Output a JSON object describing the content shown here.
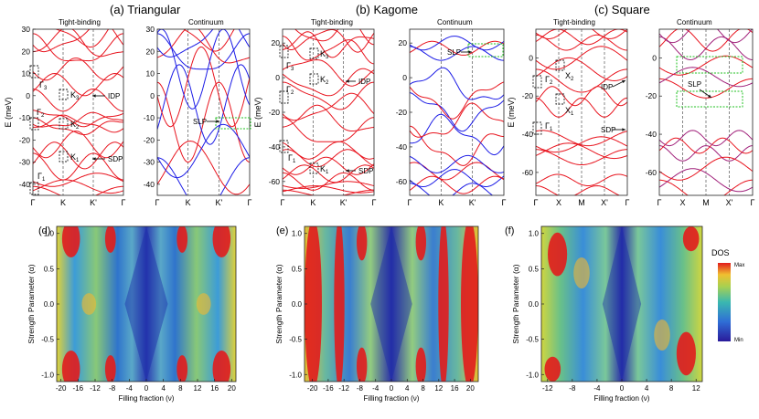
{
  "panel_titles": {
    "a": "(a) Triangular",
    "b": "(b) Kagome",
    "c": "(c) Square",
    "d": "(d)",
    "e": "(e)",
    "f": "(f)"
  },
  "subtitles": {
    "tb": "Tight-binding",
    "cont": "Continuum"
  },
  "labels": {
    "energy_axis": "E (meV)",
    "strength_axis": "Strength Parameter (α)",
    "filling_axis": "Filling fraction (ν)",
    "dos_title": "DOS",
    "dos_max": "Max",
    "dos_min": "Min",
    "idp": "IDP",
    "sdp": "SDP",
    "slp": "SLP"
  },
  "colors": {
    "red": "#e8141e",
    "blue": "#1c1ce6",
    "purple": "#a0207a",
    "green": "#22c022"
  },
  "chart_data": [
    {
      "type": "line",
      "panel": "a-tight-binding",
      "ylabel": "E (meV)",
      "ylim": [
        -45,
        30
      ],
      "yticks": [
        -40,
        -30,
        -20,
        -10,
        0,
        10,
        20,
        30
      ],
      "xticks": [
        "Γ",
        "K",
        "K'",
        "Γ"
      ],
      "annotations": [
        "Γ3",
        "Γ2",
        "Γ1",
        "K3",
        "K2",
        "K1",
        "IDP",
        "SDP"
      ]
    },
    {
      "type": "line",
      "panel": "a-continuum",
      "ylim": [
        -45,
        30
      ],
      "yticks": [
        -40,
        -30,
        -20,
        -10,
        0,
        10,
        20,
        30
      ],
      "xticks": [
        "Γ",
        "K",
        "K'",
        "Γ"
      ],
      "annotations": [
        "SLP"
      ]
    },
    {
      "type": "line",
      "panel": "b-tight-binding",
      "ylabel": "E (meV)",
      "ylim": [
        -68,
        28
      ],
      "yticks": [
        -60,
        -40,
        -20,
        0,
        20
      ],
      "xticks": [
        "Γ",
        "K",
        "K'",
        "Γ"
      ],
      "annotations": [
        "Γ3",
        "Γ2",
        "Γ1",
        "K3",
        "K2",
        "K1",
        "IDP",
        "SDP"
      ]
    },
    {
      "type": "line",
      "panel": "b-continuum",
      "ylim": [
        -68,
        28
      ],
      "yticks": [
        -60,
        -40,
        -20,
        0,
        20
      ],
      "xticks": [
        "Γ",
        "K",
        "K'",
        "Γ"
      ],
      "annotations": [
        "SLP"
      ]
    },
    {
      "type": "line",
      "panel": "c-tight-binding",
      "ylabel": "E (meV)",
      "ylim": [
        -72,
        15
      ],
      "yticks": [
        -60,
        -40,
        -20,
        0
      ],
      "xticks": [
        "Γ",
        "X",
        "M",
        "X'",
        "Γ"
      ],
      "annotations": [
        "Γ2",
        "Γ1",
        "X2",
        "X1",
        "IDP",
        "SDP"
      ]
    },
    {
      "type": "line",
      "panel": "c-continuum",
      "ylim": [
        -72,
        15
      ],
      "yticks": [
        -60,
        -40,
        -20,
        0
      ],
      "xticks": [
        "Γ",
        "X",
        "M",
        "X'",
        "Γ"
      ],
      "annotations": [
        "SLP"
      ]
    },
    {
      "type": "heatmap",
      "panel": "d",
      "xlabel": "Filling fraction (ν)",
      "ylabel": "Strength Parameter (α)",
      "xlim": [
        -21,
        21
      ],
      "ylim": [
        -1.1,
        1.1
      ],
      "xticks": [
        -20,
        -16,
        -12,
        -8,
        -4,
        0,
        4,
        8,
        12,
        16,
        20
      ],
      "yticks": [
        -1.0,
        -0.5,
        0.0,
        0.5,
        1.0
      ]
    },
    {
      "type": "heatmap",
      "panel": "e",
      "xlabel": "Filling fraction (ν)",
      "ylabel": "Strength Parameter (α)",
      "xlim": [
        -22,
        22
      ],
      "ylim": [
        -1.1,
        1.1
      ],
      "xticks": [
        -20,
        -16,
        -12,
        -8,
        -4,
        0,
        4,
        8,
        12,
        16,
        20
      ],
      "yticks": [
        -1.0,
        -0.5,
        0.0,
        0.5,
        1.0
      ]
    },
    {
      "type": "heatmap",
      "panel": "f",
      "xlabel": "Filling fraction (ν)",
      "ylabel": "Strength Parameter (α)",
      "xlim": [
        -13,
        13
      ],
      "ylim": [
        -1.1,
        1.1
      ],
      "xticks": [
        -12,
        -8,
        -4,
        0,
        4,
        8,
        12
      ],
      "yticks": [
        -1.0,
        -0.5,
        0.0,
        0.5,
        1.0
      ]
    }
  ]
}
